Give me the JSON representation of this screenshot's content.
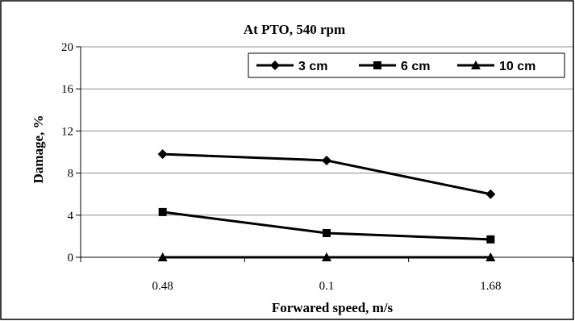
{
  "chart_data": {
    "type": "line",
    "title": "At PTO, 540 rpm",
    "xlabel": "Forwared speed, m/s",
    "ylabel": "Damage,  %",
    "categories": [
      "0.48",
      "0.1",
      "1.68"
    ],
    "ylim": [
      0,
      20
    ],
    "yticks": [
      0,
      4,
      8,
      12,
      16,
      20
    ],
    "grid": "horizontal",
    "legend_position": "top-right",
    "series": [
      {
        "name": "3 cm",
        "marker": "diamond",
        "values": [
          9.8,
          9.2,
          6.0
        ]
      },
      {
        "name": "6 cm",
        "marker": "square",
        "values": [
          4.3,
          2.3,
          1.7
        ]
      },
      {
        "name": "10 cm",
        "marker": "triangle",
        "values": [
          0,
          0,
          0
        ]
      }
    ],
    "line_color": "#000000",
    "frame_color": "#000000",
    "grid_color": "#8c8c8c"
  }
}
